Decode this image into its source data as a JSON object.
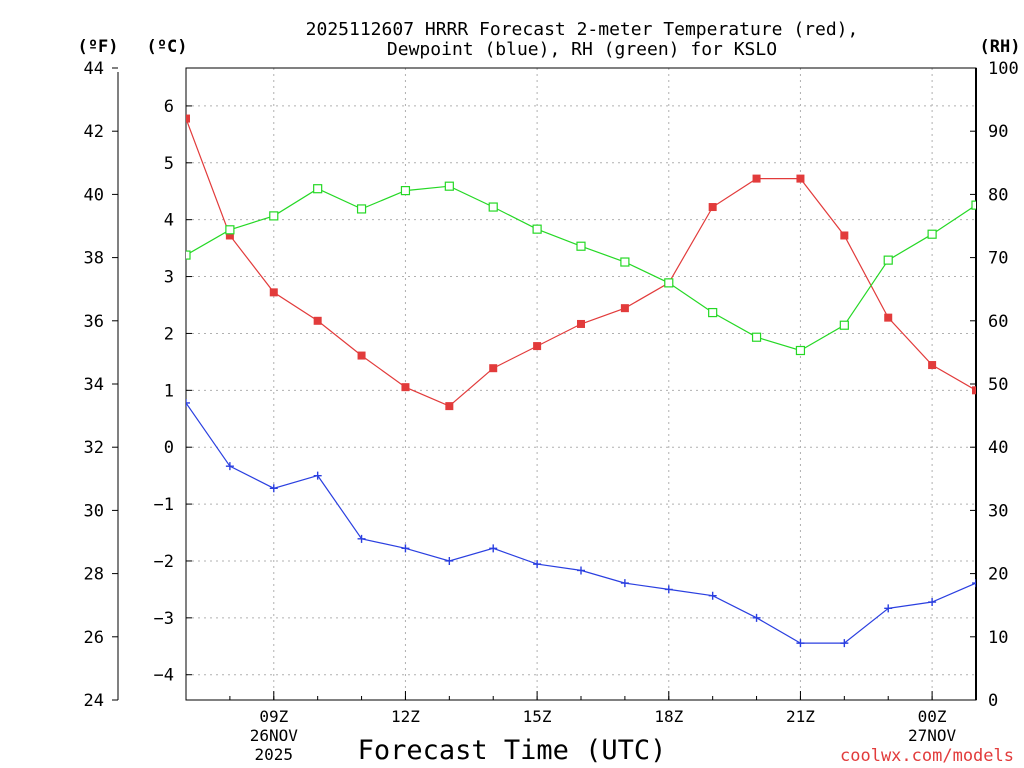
{
  "chart_data": {
    "type": "line",
    "title_line1": "2025112607 HRRR Forecast 2-meter Temperature (red),",
    "title_line2": "Dewpoint (blue), RH (green) for KSLO",
    "xlabel": "Forecast Time (UTC)",
    "credit": "coolwx.com/models",
    "units": {
      "fahrenheit": "(ºF)",
      "celsius": "(ºC)",
      "rh": "(RH)"
    },
    "x_hours": [
      7,
      8,
      9,
      10,
      11,
      12,
      13,
      14,
      15,
      16,
      17,
      18,
      19,
      20,
      21,
      22,
      23,
      24,
      25
    ],
    "x_range": [
      7,
      25
    ],
    "x_ticks": [
      {
        "hour": 9,
        "label": "09Z",
        "date": "26NOV",
        "year": "2025"
      },
      {
        "hour": 12,
        "label": "12Z",
        "date": "",
        "year": ""
      },
      {
        "hour": 15,
        "label": "15Z",
        "date": "",
        "year": ""
      },
      {
        "hour": 18,
        "label": "18Z",
        "date": "",
        "year": ""
      },
      {
        "hour": 21,
        "label": "21Z",
        "date": "",
        "year": ""
      },
      {
        "hour": 24,
        "label": "00Z",
        "date": "27NOV",
        "year": ""
      }
    ],
    "left_axis_f": {
      "min": 24,
      "max": 44,
      "ticks": [
        24,
        26,
        28,
        30,
        32,
        34,
        36,
        38,
        40,
        42,
        44
      ]
    },
    "left_axis_c": {
      "ticks": [
        "6",
        "5",
        "4",
        "3",
        "2",
        "1",
        "0",
        "−1",
        "−2",
        "−3",
        "−4"
      ],
      "values": [
        6,
        5,
        4,
        3,
        2,
        1,
        0,
        -1,
        -2,
        -3,
        -4
      ]
    },
    "right_axis_rh": {
      "min": 0,
      "max": 100,
      "ticks": [
        0,
        10,
        20,
        30,
        40,
        50,
        60,
        70,
        80,
        90,
        100
      ]
    },
    "series": [
      {
        "name": "2-meter Temperature",
        "units": "F",
        "color": "#e23b3b",
        "marker": "filled-square",
        "values": [
          42.4,
          38.7,
          36.9,
          36.0,
          34.9,
          33.9,
          33.3,
          34.5,
          35.2,
          35.9,
          36.4,
          37.2,
          39.6,
          40.5,
          40.5,
          38.7,
          36.1,
          34.6,
          33.8
        ]
      },
      {
        "name": "Dewpoint",
        "units": "F",
        "color": "#2a3fe0",
        "marker": "plus",
        "values": [
          33.4,
          31.4,
          30.7,
          31.1,
          29.1,
          28.8,
          28.4,
          28.8,
          28.3,
          28.1,
          27.7,
          27.5,
          27.3,
          26.6,
          25.8,
          25.8,
          26.9,
          27.1,
          27.7
        ]
      },
      {
        "name": "RH",
        "units": "%",
        "color": "#25d825",
        "marker": "open-square",
        "values": [
          70.4,
          74.4,
          76.6,
          80.9,
          77.7,
          80.6,
          81.3,
          78.0,
          74.5,
          71.8,
          69.3,
          66.0,
          61.3,
          57.4,
          55.3,
          59.3,
          69.6,
          73.7,
          78.3
        ]
      }
    ]
  }
}
